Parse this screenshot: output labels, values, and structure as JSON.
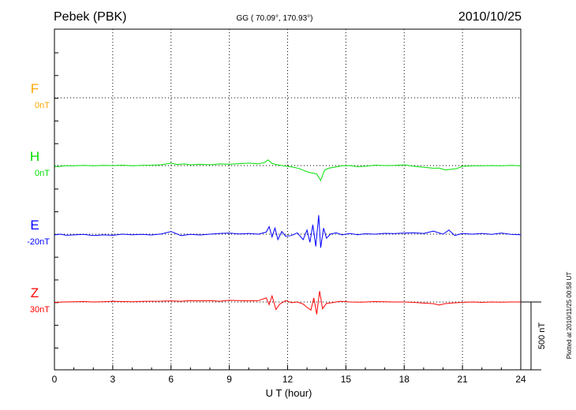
{
  "header": {
    "station": "Pebek (PBK)",
    "coords": "GG ( 70.09°, 170.93°)",
    "date": "2010/10/25"
  },
  "plotted_note": "Plotted at 2010/11/25 00:58 UT",
  "scale_label": "500 nT",
  "chart_data": {
    "type": "line",
    "xlabel": "U T (hour)",
    "xlim": [
      0,
      24
    ],
    "x_ticks": [
      "0",
      "3",
      "6",
      "9",
      "12",
      "15",
      "18",
      "21",
      "24"
    ],
    "scale_nT": 500,
    "series": [
      {
        "name": "F",
        "baseline_label": "0nT",
        "color": "#ffa500",
        "x": [],
        "values": []
      },
      {
        "name": "H",
        "baseline_label": "0nT",
        "color": "#00e000",
        "x": [
          0,
          0.2,
          0.5,
          1,
          1.5,
          2,
          2.5,
          3,
          3.5,
          4,
          4.5,
          5,
          5.5,
          6,
          6.3,
          6.7,
          7,
          7.5,
          8,
          8.5,
          9,
          9.5,
          10,
          10.5,
          10.8,
          11,
          11.2,
          11.4,
          11.7,
          12,
          12.3,
          12.6,
          12.9,
          13.1,
          13.3,
          13.5,
          13.7,
          13.9,
          14.1,
          14.4,
          14.8,
          15.2,
          15.6,
          16,
          16.5,
          17,
          17.5,
          18,
          18.5,
          19,
          19.5,
          19.8,
          20.1,
          20.4,
          20.7,
          21,
          21.3,
          21.6,
          22,
          22.5,
          23,
          23.5,
          24
        ],
        "values": [
          -3,
          -8,
          -2,
          -1,
          2,
          -2,
          1,
          0,
          3,
          -1,
          2,
          3,
          6,
          18,
          8,
          12,
          5,
          10,
          6,
          12,
          10,
          14,
          18,
          12,
          22,
          42,
          15,
          8,
          0,
          -5,
          -12,
          -22,
          -40,
          -50,
          -55,
          -62,
          -110,
          -35,
          -20,
          -12,
          -2,
          0,
          -8,
          -5,
          3,
          0,
          2,
          5,
          -5,
          -12,
          -20,
          -18,
          -32,
          -28,
          -22,
          -6,
          -3,
          -2,
          -2,
          0,
          -1,
          1,
          -2
        ]
      },
      {
        "name": "E",
        "baseline_label": "-20nT",
        "color": "#0000ff",
        "x": [
          0,
          0.3,
          0.6,
          1,
          1.5,
          2,
          2.5,
          3,
          3.5,
          4,
          4.5,
          5,
          5.5,
          6,
          6.5,
          7,
          7.5,
          8,
          8.5,
          9,
          9.5,
          10,
          10.5,
          10.9,
          11.05,
          11.2,
          11.35,
          11.5,
          11.7,
          11.9,
          12.2,
          12.5,
          12.8,
          13.0,
          13.15,
          13.3,
          13.45,
          13.6,
          13.7,
          13.85,
          14.0,
          14.2,
          14.5,
          14.8,
          15.2,
          15.6,
          16,
          16.5,
          17,
          17.5,
          18,
          18.5,
          19,
          19.5,
          20,
          20.3,
          20.6,
          21,
          21.5,
          22,
          22.5,
          23,
          23.5,
          24
        ],
        "values": [
          -5,
          0,
          -8,
          -5,
          -2,
          -10,
          -5,
          -8,
          0,
          -4,
          -2,
          -6,
          2,
          20,
          -10,
          -2,
          -6,
          0,
          5,
          8,
          2,
          5,
          0,
          15,
          55,
          -20,
          45,
          -40,
          20,
          -15,
          -10,
          10,
          -40,
          30,
          -60,
          70,
          -90,
          140,
          -100,
          45,
          -30,
          0,
          10,
          -5,
          5,
          -4,
          3,
          0,
          6,
          4,
          8,
          10,
          5,
          22,
          0,
          30,
          -10,
          5,
          0,
          5,
          -2,
          8,
          -2,
          -4
        ]
      },
      {
        "name": "Z",
        "baseline_label": "30nT",
        "color": "#ff0000",
        "x": [
          0,
          0.5,
          1,
          1.5,
          2,
          2.5,
          3,
          3.5,
          4,
          4.5,
          5,
          5.5,
          6,
          6.5,
          7,
          7.5,
          8,
          8.5,
          9,
          9.5,
          10,
          10.5,
          10.9,
          11.05,
          11.2,
          11.4,
          11.6,
          11.9,
          12.2,
          12.5,
          12.8,
          13.0,
          13.2,
          13.35,
          13.5,
          13.65,
          13.8,
          14.0,
          14.3,
          14.7,
          15.2,
          15.8,
          16.5,
          17,
          17.5,
          18,
          18.5,
          19,
          19.5,
          19.8,
          20.1,
          20.4,
          20.8,
          21.2,
          21.6,
          22,
          22.5,
          23,
          23.5,
          24
        ],
        "values": [
          -3,
          0,
          2,
          3,
          0,
          2,
          5,
          3,
          2,
          4,
          5,
          6,
          8,
          5,
          10,
          8,
          10,
          5,
          12,
          10,
          8,
          10,
          30,
          -20,
          45,
          -55,
          -15,
          10,
          -5,
          0,
          -15,
          -40,
          -60,
          30,
          -90,
          80,
          -50,
          -10,
          -5,
          5,
          0,
          -2,
          3,
          2,
          0,
          0,
          -3,
          -8,
          -12,
          -22,
          -12,
          -8,
          -4,
          -2,
          0,
          -3,
          0,
          -2,
          0,
          0
        ]
      }
    ],
    "grid": true
  }
}
